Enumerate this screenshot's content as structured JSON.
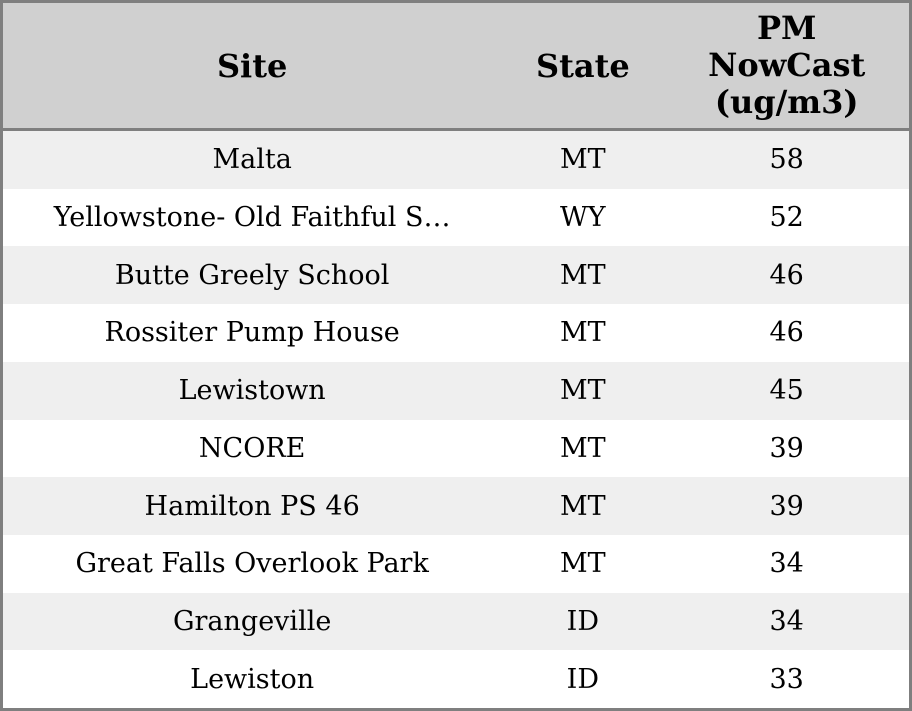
{
  "chart_data": {
    "type": "table",
    "title": "",
    "columns": [
      "Site",
      "State",
      "PM NowCast (ug/m3)"
    ],
    "rows": [
      [
        "Malta",
        "MT",
        58
      ],
      [
        "Yellowstone- Old Faithful S…",
        "WY",
        52
      ],
      [
        "Butte Greely School",
        "MT",
        46
      ],
      [
        "Rossiter Pump House",
        "MT",
        46
      ],
      [
        "Lewistown",
        "MT",
        45
      ],
      [
        "NCORE",
        "MT",
        39
      ],
      [
        "Hamilton PS 46",
        "MT",
        39
      ],
      [
        "Great Falls Overlook Park",
        "MT",
        34
      ],
      [
        "Grangeville",
        "ID",
        34
      ],
      [
        "Lewiston",
        "ID",
        33
      ]
    ],
    "layout": {
      "stripe_pattern": "odd-rows-shaded",
      "text_align": "center",
      "first_body_row_shaded": true
    }
  },
  "header": {
    "site_label": "Site",
    "state_label": "State",
    "pm_label_lines": [
      "PM",
      "NowCast",
      "(ug/m3)"
    ]
  },
  "colors": {
    "border": "#7f7f7f",
    "header_bg": "#d0d0d0",
    "row_stripe_bg": "#efefef",
    "row_bg": "#ffffff",
    "text": "#000000"
  }
}
